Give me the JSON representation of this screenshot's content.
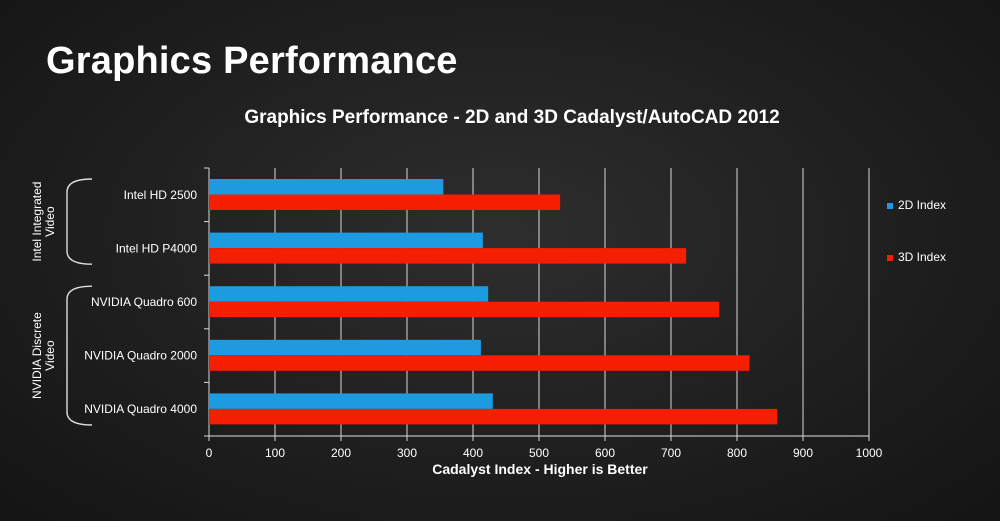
{
  "slide": {
    "title": "Graphics Performance"
  },
  "chart_data": {
    "type": "bar",
    "orientation": "horizontal",
    "title": "Graphics Performance - 2D and 3D Cadalyst/AutoCAD 2012",
    "xlabel": "Cadalyst Index - Higher is Better",
    "ylabel": "",
    "xlim": [
      0,
      1000
    ],
    "xticks": [
      0,
      100,
      200,
      300,
      400,
      500,
      600,
      700,
      800,
      900,
      1000
    ],
    "grid": "vertical",
    "legend": "right",
    "categories": [
      "Intel HD 2500",
      "Intel HD P4000",
      "NVIDIA Quadro 600",
      "NVIDIA Quadro 2000",
      "NVIDIA Quadro 4000"
    ],
    "groups": [
      {
        "label_lines": [
          "Intel Integrated",
          "Video"
        ],
        "members": [
          0,
          1
        ]
      },
      {
        "label_lines": [
          "NVIDIA Discrete",
          "Video"
        ],
        "members": [
          2,
          3,
          4
        ]
      }
    ],
    "series": [
      {
        "name": "2D Index",
        "color": "#1e9ae0",
        "values": [
          355,
          415,
          423,
          412,
          430
        ]
      },
      {
        "name": "3D Index",
        "color": "#f41e00",
        "values": [
          532,
          723,
          773,
          819,
          861
        ]
      }
    ]
  }
}
